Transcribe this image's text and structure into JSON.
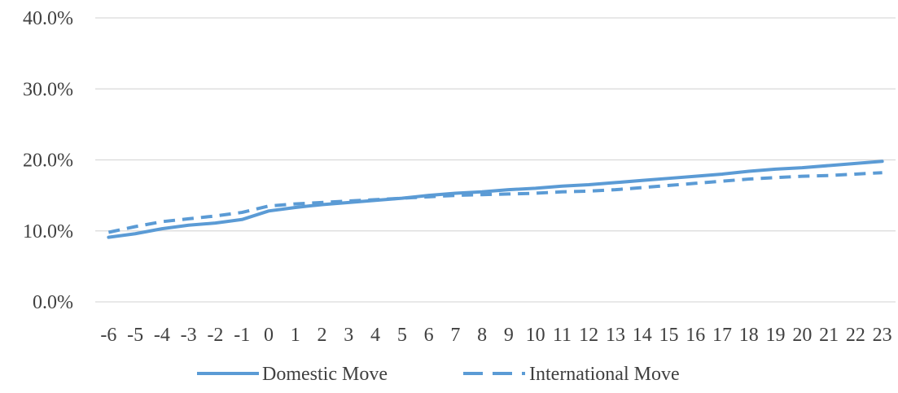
{
  "chart_data": {
    "type": "line",
    "title": "",
    "xlabel": "",
    "ylabel": "",
    "x": [
      "-6",
      "-5",
      "-4",
      "-3",
      "-2",
      "-1",
      "0",
      "1",
      "2",
      "3",
      "4",
      "5",
      "6",
      "7",
      "8",
      "9",
      "10",
      "11",
      "12",
      "13",
      "14",
      "15",
      "16",
      "17",
      "18",
      "19",
      "20",
      "21",
      "22",
      "23"
    ],
    "ylim": [
      0,
      40
    ],
    "yticks": [
      "0.0%",
      "10.0%",
      "20.0%",
      "30.0%",
      "40.0%"
    ],
    "grid": "horizontal",
    "legend": "bottom",
    "series": [
      {
        "name": "Domestic Move",
        "style": "solid",
        "color": "#5b9bd5",
        "values": [
          9.1,
          9.6,
          10.3,
          10.8,
          11.1,
          11.6,
          12.8,
          13.3,
          13.7,
          14.0,
          14.3,
          14.6,
          15.0,
          15.3,
          15.5,
          15.8,
          16.0,
          16.3,
          16.5,
          16.8,
          17.1,
          17.4,
          17.7,
          18.0,
          18.4,
          18.7,
          18.9,
          19.2,
          19.5,
          19.8
        ]
      },
      {
        "name": "International Move",
        "style": "dashed",
        "color": "#5b9bd5",
        "values": [
          9.8,
          10.6,
          11.3,
          11.7,
          12.1,
          12.6,
          13.5,
          13.8,
          14.0,
          14.2,
          14.4,
          14.6,
          14.8,
          15.0,
          15.1,
          15.2,
          15.3,
          15.5,
          15.6,
          15.8,
          16.1,
          16.4,
          16.7,
          17.0,
          17.3,
          17.5,
          17.7,
          17.8,
          18.0,
          18.2
        ]
      }
    ]
  }
}
